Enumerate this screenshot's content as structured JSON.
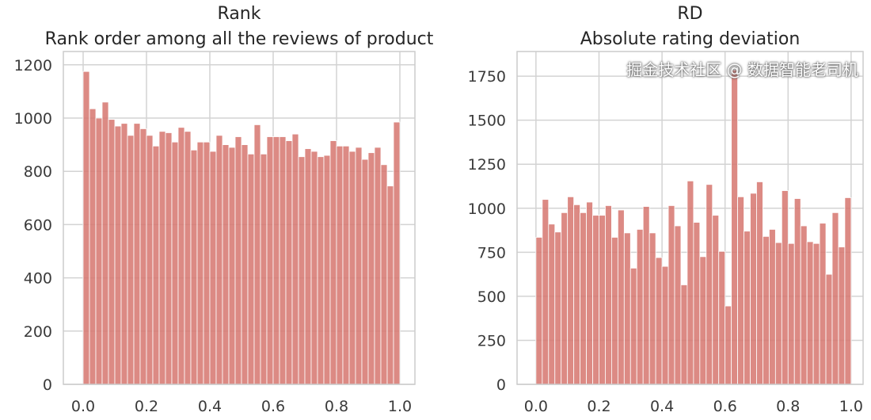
{
  "chart_data": [
    {
      "type": "bar",
      "title": "Rank",
      "subtitle": "Rank order among all the reviews of product",
      "xlabel": "",
      "ylabel": "",
      "bins": 50,
      "xlim": [
        -0.0625,
        1.0475
      ],
      "ylim": [
        0,
        1250
      ],
      "xticks": [
        "0.0",
        "0.2",
        "0.4",
        "0.6",
        "0.8",
        "1.0"
      ],
      "yticks": [
        "0",
        "200",
        "400",
        "600",
        "800",
        "1000",
        "1200"
      ],
      "grid": true,
      "color": "#d6756e",
      "values": [
        1175,
        1035,
        1000,
        1060,
        995,
        970,
        980,
        935,
        980,
        960,
        935,
        895,
        950,
        945,
        910,
        965,
        950,
        880,
        910,
        910,
        875,
        935,
        900,
        890,
        930,
        900,
        865,
        975,
        865,
        930,
        930,
        930,
        915,
        940,
        855,
        885,
        875,
        855,
        860,
        915,
        895,
        895,
        875,
        890,
        845,
        870,
        890,
        825,
        745,
        985
      ]
    },
    {
      "type": "bar",
      "title": "RD",
      "subtitle": "Absolute rating deviation",
      "xlabel": "",
      "ylabel": "",
      "bins": 50,
      "xlim": [
        -0.06,
        1.038
      ],
      "ylim": [
        0,
        1890
      ],
      "xticks": [
        "0.0",
        "0.2",
        "0.4",
        "0.6",
        "0.8",
        "1.0"
      ],
      "yticks": [
        "0",
        "250",
        "500",
        "750",
        "1000",
        "1250",
        "1500",
        "1750"
      ],
      "grid": true,
      "color": "#d6756e",
      "values": [
        835,
        1050,
        910,
        865,
        975,
        1065,
        1020,
        975,
        1035,
        960,
        960,
        1015,
        835,
        990,
        860,
        660,
        880,
        1010,
        860,
        720,
        670,
        1015,
        900,
        565,
        1155,
        920,
        725,
        1135,
        960,
        755,
        445,
        1785,
        1065,
        870,
        1085,
        1150,
        840,
        880,
        805,
        1100,
        800,
        1055,
        900,
        810,
        800,
        915,
        625,
        975,
        780,
        1060
      ]
    }
  ],
  "watermark": "掘金技术社区 @ 数据智能老司机"
}
